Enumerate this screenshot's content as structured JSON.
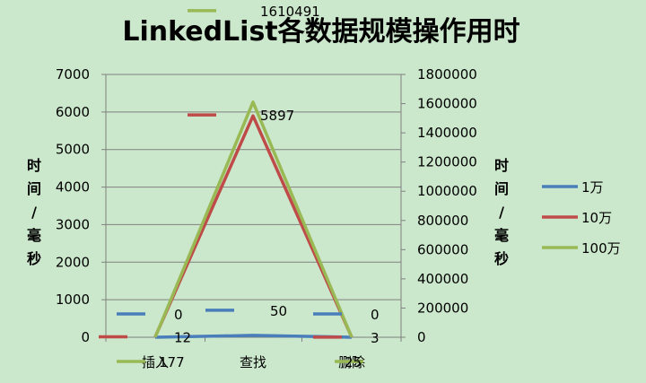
{
  "chart_data": {
    "type": "line",
    "title": "LinkedList各数据规模操作用时",
    "categories": [
      "插入",
      "查找",
      "删除"
    ],
    "y_left": {
      "label": [
        "时",
        "间",
        "/",
        "毫",
        "秒"
      ],
      "ylim": [
        0,
        7000
      ],
      "ticks": [
        "0",
        "1000",
        "2000",
        "3000",
        "4000",
        "5000",
        "6000",
        "7000"
      ]
    },
    "y_right": {
      "label": [
        "时",
        "间",
        "/",
        "毫",
        "秒"
      ],
      "ylim": [
        0,
        1800000
      ],
      "ticks": [
        "0",
        "200000",
        "400000",
        "600000",
        "800000",
        "1000000",
        "1200000",
        "1400000",
        "1600000",
        "1800000"
      ]
    },
    "series": [
      {
        "name": "1万",
        "axis": "left",
        "color": "#4a7ebb",
        "values": [
          0,
          50,
          0
        ],
        "labels": [
          "0",
          "50",
          "0"
        ]
      },
      {
        "name": "10万",
        "axis": "left",
        "color": "#be4b48",
        "values": [
          12,
          5897,
          3
        ],
        "labels": [
          "12",
          "5897",
          "3"
        ]
      },
      {
        "name": "100万",
        "axis": "right",
        "color": "#98b954",
        "values": [
          177,
          1610491,
          25
        ],
        "labels": [
          "177",
          "1610491",
          "25"
        ]
      }
    ],
    "grid": true,
    "legend": "right"
  }
}
